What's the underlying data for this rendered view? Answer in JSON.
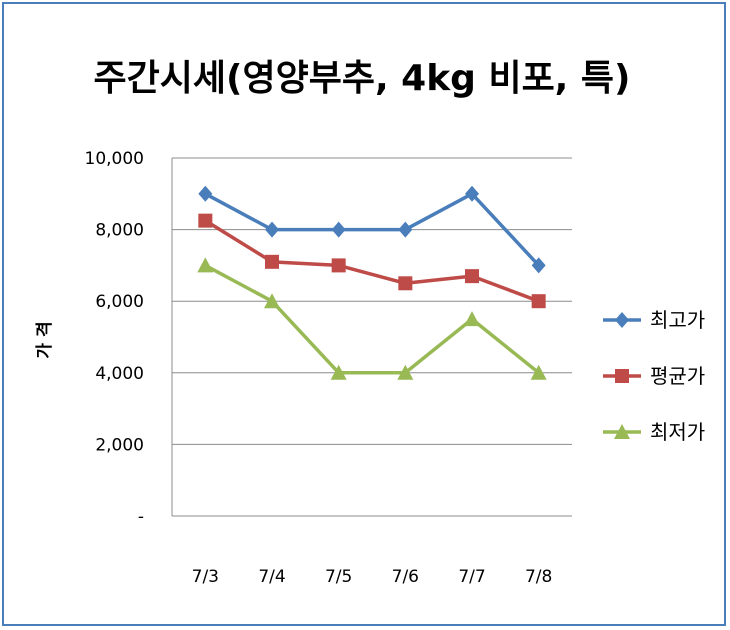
{
  "chart_data": {
    "type": "line",
    "title": "주간시세(영양부추, 4kg 비포, 특)",
    "ylabel": "가 격",
    "xlabel": "",
    "categories": [
      "7/3",
      "7/4",
      "7/5",
      "7/6",
      "7/7",
      "7/8"
    ],
    "ylim": [
      0,
      10000
    ],
    "yticks": [
      {
        "value": 0,
        "label": "-"
      },
      {
        "value": 2000,
        "label": "2,000"
      },
      {
        "value": 4000,
        "label": "4,000"
      },
      {
        "value": 6000,
        "label": "6,000"
      },
      {
        "value": 8000,
        "label": "8,000"
      },
      {
        "value": 10000,
        "label": "10,000"
      }
    ],
    "grid": true,
    "legend_position": "right",
    "series": [
      {
        "name": "최고가",
        "color": "#4a7ebb",
        "marker": "diamond",
        "values": [
          9000,
          8000,
          8000,
          8000,
          9000,
          7000
        ]
      },
      {
        "name": "평균가",
        "color": "#be4b48",
        "marker": "square",
        "values": [
          8250,
          7100,
          7000,
          6500,
          6700,
          6000
        ]
      },
      {
        "name": "최저가",
        "color": "#98b954",
        "marker": "triangle",
        "values": [
          7000,
          6000,
          4000,
          4000,
          5500,
          4000
        ]
      }
    ]
  }
}
